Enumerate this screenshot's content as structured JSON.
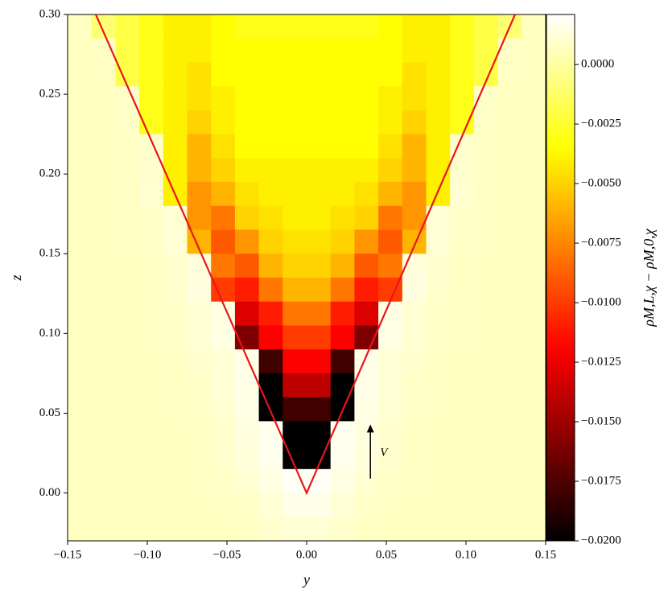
{
  "chart_data": {
    "type": "heatmap",
    "xlabel": "y",
    "ylabel": "z",
    "colorbar_label": "ρM,L,χ − ρM,0,χ",
    "colormap": "hot",
    "x": [
      -0.1425,
      -0.1275,
      -0.1125,
      -0.0975,
      -0.0825,
      -0.0675,
      -0.0525,
      -0.0375,
      -0.0225,
      -0.0075,
      0.0075,
      0.0225,
      0.0375,
      0.0525,
      0.0675,
      0.0825,
      0.0975,
      0.1125,
      0.1275,
      0.1425
    ],
    "y": [
      0.2925,
      0.2775,
      0.2625,
      0.2475,
      0.2325,
      0.2175,
      0.2025,
      0.1875,
      0.1725,
      0.1575,
      0.1425,
      0.1275,
      0.1125,
      0.0975,
      0.0825,
      0.0675,
      0.0525,
      0.0375,
      0.0225,
      0.0075,
      -0.0075,
      -0.0225
    ],
    "values": [
      [
        0.0007,
        -0.001,
        -0.002,
        -0.003,
        -0.004,
        -0.004,
        -0.0035,
        -0.003,
        -0.003,
        -0.003,
        -0.003,
        -0.003,
        -0.003,
        -0.0035,
        -0.004,
        -0.004,
        -0.003,
        -0.002,
        -0.001,
        0.0007
      ],
      [
        0.0007,
        0.0008,
        -0.002,
        -0.003,
        -0.004,
        -0.004,
        -0.0035,
        -0.0035,
        -0.0035,
        -0.0035,
        -0.0035,
        -0.0035,
        -0.0035,
        -0.0035,
        -0.004,
        -0.004,
        -0.003,
        -0.002,
        0.0008,
        0.0007
      ],
      [
        0.0007,
        0.0008,
        -0.002,
        -0.003,
        -0.004,
        -0.0045,
        -0.0035,
        -0.0035,
        -0.0035,
        -0.0035,
        -0.0035,
        -0.0035,
        -0.0035,
        -0.0035,
        -0.0045,
        -0.004,
        -0.003,
        -0.002,
        0.0008,
        0.0007
      ],
      [
        0.0007,
        0.0007,
        0.0009,
        -0.003,
        -0.004,
        -0.0045,
        -0.004,
        -0.0035,
        -0.0035,
        -0.0035,
        -0.0035,
        -0.0035,
        -0.0035,
        -0.004,
        -0.0045,
        -0.004,
        -0.003,
        0.0009,
        0.0007,
        0.0007
      ],
      [
        0.0007,
        0.0007,
        0.0009,
        -0.003,
        -0.004,
        -0.005,
        -0.004,
        -0.0035,
        -0.0035,
        -0.0035,
        -0.0035,
        -0.0035,
        -0.0035,
        -0.004,
        -0.005,
        -0.004,
        -0.003,
        0.0009,
        0.0007,
        0.0007
      ],
      [
        0.0007,
        0.0007,
        0.0008,
        0.001,
        -0.004,
        -0.006,
        -0.0045,
        -0.0035,
        -0.0035,
        -0.0035,
        -0.0035,
        -0.0035,
        -0.0035,
        -0.0045,
        -0.006,
        -0.004,
        0.001,
        0.0008,
        0.0007,
        0.0007
      ],
      [
        0.0007,
        0.0007,
        0.0008,
        0.001,
        -0.004,
        -0.006,
        -0.005,
        -0.004,
        -0.004,
        -0.004,
        -0.004,
        -0.004,
        -0.004,
        -0.005,
        -0.006,
        -0.004,
        0.001,
        0.0008,
        0.0007,
        0.0007
      ],
      [
        0.0007,
        0.0007,
        0.0008,
        0.0011,
        -0.004,
        -0.007,
        -0.006,
        -0.0045,
        -0.004,
        -0.004,
        -0.004,
        -0.004,
        -0.0045,
        -0.006,
        -0.007,
        -0.004,
        0.0011,
        0.0008,
        0.0007,
        0.0007
      ],
      [
        0.0007,
        0.0007,
        0.0008,
        0.0009,
        0.0012,
        -0.007,
        -0.008,
        -0.005,
        -0.0045,
        -0.004,
        -0.004,
        -0.0045,
        -0.005,
        -0.008,
        -0.007,
        0.0012,
        0.0009,
        0.0008,
        0.0007,
        0.0007
      ],
      [
        0.0007,
        0.0007,
        0.0008,
        0.0009,
        0.0012,
        -0.006,
        -0.009,
        -0.007,
        -0.005,
        -0.0045,
        -0.0045,
        -0.005,
        -0.007,
        -0.009,
        -0.006,
        0.0012,
        0.0009,
        0.0008,
        0.0007,
        0.0007
      ],
      [
        0.0007,
        0.0007,
        0.0007,
        0.0008,
        0.001,
        0.0013,
        -0.008,
        -0.009,
        -0.006,
        -0.005,
        -0.005,
        -0.006,
        -0.009,
        -0.008,
        0.0013,
        0.001,
        0.0008,
        0.0007,
        0.0007,
        0.0007
      ],
      [
        0.0007,
        0.0007,
        0.0007,
        0.0008,
        0.001,
        0.0014,
        -0.01,
        -0.011,
        -0.008,
        -0.006,
        -0.006,
        -0.008,
        -0.011,
        -0.01,
        0.0014,
        0.001,
        0.0008,
        0.0007,
        0.0007,
        0.0007
      ],
      [
        0.0007,
        0.0007,
        0.0007,
        0.0008,
        0.0009,
        0.0011,
        0.0015,
        -0.013,
        -0.011,
        -0.008,
        -0.008,
        -0.011,
        -0.013,
        0.0015,
        0.0011,
        0.0009,
        0.0008,
        0.0007,
        0.0007,
        0.0007
      ],
      [
        0.0007,
        0.0007,
        0.0007,
        0.0008,
        0.0009,
        0.0011,
        0.0015,
        -0.016,
        -0.012,
        -0.01,
        -0.01,
        -0.012,
        -0.016,
        0.0015,
        0.0011,
        0.0009,
        0.0008,
        0.0007,
        0.0007,
        0.0007
      ],
      [
        0.0007,
        0.0007,
        0.0007,
        0.0007,
        0.0008,
        0.001,
        0.0012,
        0.0016,
        -0.018,
        -0.012,
        -0.012,
        -0.018,
        0.0016,
        0.0012,
        0.001,
        0.0008,
        0.0007,
        0.0007,
        0.0007,
        0.0007
      ],
      [
        0.0007,
        0.0007,
        0.0007,
        0.0007,
        0.0008,
        0.0009,
        0.0012,
        0.0016,
        -0.02,
        -0.014,
        -0.014,
        -0.02,
        0.0016,
        0.0012,
        0.0009,
        0.0008,
        0.0007,
        0.0007,
        0.0007,
        0.0007
      ],
      [
        0.0007,
        0.0007,
        0.0007,
        0.0007,
        0.0008,
        0.0009,
        0.0011,
        0.0015,
        -0.02,
        -0.018,
        -0.018,
        -0.02,
        0.0015,
        0.0011,
        0.0009,
        0.0008,
        0.0007,
        0.0007,
        0.0007,
        0.0007
      ],
      [
        0.0007,
        0.0007,
        0.0007,
        0.0007,
        0.0007,
        0.0008,
        0.001,
        0.0014,
        0.0017,
        -0.02,
        -0.02,
        0.0017,
        0.0014,
        0.001,
        0.0008,
        0.0007,
        0.0007,
        0.0007,
        0.0007,
        0.0007
      ],
      [
        0.0007,
        0.0007,
        0.0007,
        0.0007,
        0.0007,
        0.0008,
        0.001,
        0.0013,
        0.0017,
        -0.02,
        -0.02,
        0.0017,
        0.0013,
        0.001,
        0.0008,
        0.0007,
        0.0007,
        0.0007,
        0.0007,
        0.0007
      ],
      [
        0.0007,
        0.0007,
        0.0007,
        0.0007,
        0.0007,
        0.0008,
        0.0009,
        0.0011,
        0.0015,
        0.0019,
        0.0019,
        0.0015,
        0.0011,
        0.0009,
        0.0008,
        0.0007,
        0.0007,
        0.0007,
        0.0007,
        0.0007
      ],
      [
        0.0007,
        0.0007,
        0.0007,
        0.0007,
        0.0007,
        0.0007,
        0.0008,
        0.0009,
        0.0012,
        0.0016,
        0.0016,
        0.0012,
        0.0009,
        0.0008,
        0.0007,
        0.0007,
        0.0007,
        0.0007,
        0.0007,
        0.0007
      ],
      [
        0.0007,
        0.0007,
        0.0007,
        0.0007,
        0.0007,
        0.0007,
        0.0007,
        0.0008,
        0.001,
        0.0012,
        0.0012,
        0.001,
        0.0008,
        0.0007,
        0.0007,
        0.0007,
        0.0007,
        0.0007,
        0.0007,
        0.0007
      ]
    ],
    "xlim": [
      -0.15,
      0.15
    ],
    "ylim": [
      -0.03,
      0.3
    ],
    "xticks": [
      {
        "value": -0.15,
        "label": "−0.15"
      },
      {
        "value": -0.1,
        "label": "−0.10"
      },
      {
        "value": -0.05,
        "label": "−0.05"
      },
      {
        "value": 0,
        "label": "0.00"
      },
      0.05,
      {
        "value": 0.1,
        "label": "0.10"
      },
      0.15
    ],
    "yticks": [
      {
        "value": 0,
        "label": "0.00"
      },
      0.05,
      {
        "value": 0.1,
        "label": "0.10"
      },
      0.15,
      {
        "value": 0.2,
        "label": "0.20"
      },
      0.25,
      {
        "value": 0.3,
        "label": "0.30"
      }
    ],
    "clim": [
      -0.02,
      0.0021
    ],
    "cticks": [
      {
        "value": 0,
        "label": "0.0000"
      },
      {
        "value": -0.0025,
        "label": "−0.0025"
      },
      {
        "value": -0.005,
        "label": "−0.0050"
      },
      {
        "value": -0.0075,
        "label": "−0.0075"
      },
      {
        "value": -0.01,
        "label": "−0.0100"
      },
      {
        "value": -0.0125,
        "label": "−0.0125"
      },
      {
        "value": -0.015,
        "label": "−0.0150"
      },
      {
        "value": -0.0175,
        "label": "−0.0175"
      },
      {
        "value": -0.02,
        "label": "−0.0200"
      }
    ],
    "line": {
      "color": "#e8141c",
      "x": [
        -0.1323,
        0,
        0.1308
      ],
      "y": [
        0.3,
        0,
        0.3
      ]
    },
    "arrow": {
      "text": "V",
      "x": 0.04,
      "y_start": 0.009,
      "y_end": 0.043
    }
  }
}
